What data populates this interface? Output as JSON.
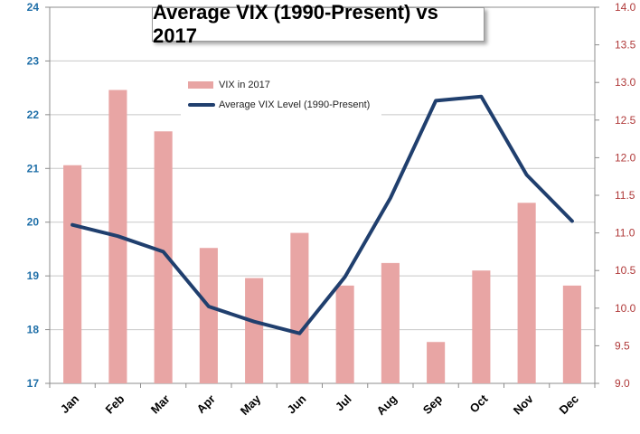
{
  "chart_data": {
    "type": "bar+line",
    "title": "Average VIX (1990-Present) vs 2017",
    "categories": [
      "Jan",
      "Feb",
      "Mar",
      "Apr",
      "May",
      "Jun",
      "Jul",
      "Aug",
      "Sep",
      "Oct",
      "Nov",
      "Dec"
    ],
    "series": [
      {
        "name": "VIX in 2017",
        "type": "bar",
        "axis": "right",
        "color": "#e8a5a4",
        "values": [
          11.9,
          12.9,
          12.35,
          10.8,
          10.4,
          11.0,
          10.3,
          10.6,
          9.55,
          10.5,
          11.4,
          10.3
        ]
      },
      {
        "name": "Average VIX Level (1990-Present)",
        "type": "line",
        "axis": "left",
        "color": "#203f6e",
        "values": [
          19.95,
          19.74,
          19.45,
          18.43,
          18.15,
          17.93,
          18.98,
          20.45,
          22.26,
          22.34,
          20.88,
          20.02
        ]
      }
    ],
    "y_left": {
      "ylim": [
        17,
        24
      ],
      "ticks": [
        "17",
        "18",
        "19",
        "20",
        "21",
        "22",
        "23",
        "24"
      ],
      "tick_color": "#1f6fa8"
    },
    "y_right": {
      "ylim": [
        9.0,
        14.0
      ],
      "ticks": [
        "9.0",
        "9.5",
        "10.0",
        "10.5",
        "11.0",
        "11.5",
        "12.0",
        "12.5",
        "13.0",
        "13.5",
        "14.0"
      ],
      "tick_color": "#b03a3a"
    },
    "grid": true,
    "legend_position": "upper-center-left"
  }
}
